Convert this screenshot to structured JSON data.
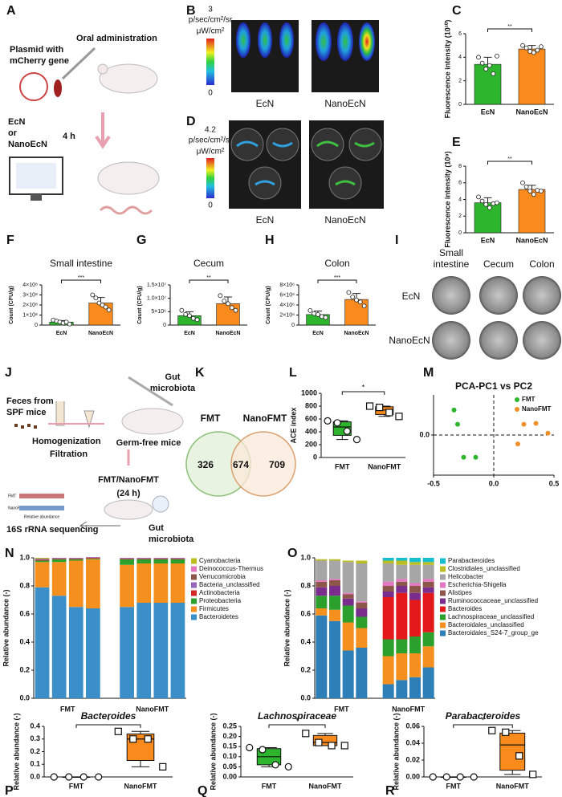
{
  "figure": {
    "A": {
      "letter": "A",
      "oral": "Oral administration",
      "plasmid": [
        "Plasmid with",
        "mCherry gene"
      ],
      "strain": [
        "EcN",
        "or",
        "NanoEcN"
      ],
      "time": "4 h"
    },
    "B": {
      "letter": "B",
      "scale_max": 3,
      "units": [
        "p/sec/cm²/sr",
        "μW/cm²"
      ],
      "scale_min": 0,
      "labels": [
        "EcN",
        "NanoEcN"
      ]
    },
    "D": {
      "letter": "D",
      "scale_max": 4.2,
      "units": [
        "p/sec/cm²/sr",
        "μW/cm²"
      ],
      "scale_min": 0,
      "labels": [
        "EcN",
        "NanoEcN"
      ]
    },
    "I": {
      "letter": "I",
      "columns": [
        [
          "Small",
          "intestine"
        ],
        [
          "Cecum"
        ],
        [
          "Colon"
        ]
      ],
      "rows": [
        "EcN",
        "NanoEcN"
      ]
    },
    "J": {
      "letter": "J",
      "feces": [
        "Feces from",
        "SPF mice"
      ],
      "steps": [
        "Homogenization",
        "Filtration",
        "FMT/NanoFMT",
        "(24 h)"
      ],
      "gut_top": [
        "Gut",
        "microbiota"
      ],
      "germ_free": "Germ-free mice",
      "gut_bottom": [
        "Gut",
        "microbiota"
      ],
      "sequencing": "16S rRNA sequencing",
      "mini_legend": [
        "FMT",
        "NanoFMT"
      ],
      "mini_axis": "Relative abundance"
    },
    "K": {
      "letter": "K",
      "sets": [
        "FMT",
        "NanoFMT"
      ],
      "counts": {
        "left": 326,
        "both": 674,
        "right": 709
      }
    }
  },
  "chart_data": [
    {
      "type": "bar",
      "panel": "C",
      "ylabel": "Fluorescence intensity (10¹⁰)",
      "categories": [
        "EcN",
        "NanoEcN"
      ],
      "values": [
        3.4,
        4.7
      ],
      "errors": [
        0.6,
        0.3
      ],
      "points": [
        [
          4.0,
          3.5,
          3.0,
          3.3,
          2.6,
          4.1
        ],
        [
          5.0,
          4.8,
          4.5,
          4.4,
          4.6,
          4.9
        ]
      ],
      "colors": [
        "#2db52d",
        "#f98a1b"
      ],
      "ylim": [
        0,
        6
      ],
      "yticks": [
        0,
        2,
        4,
        6
      ],
      "significance": "**"
    },
    {
      "type": "bar",
      "panel": "E",
      "ylabel": "Fluorescence intensity (10⁹)",
      "categories": [
        "EcN",
        "NanoEcN"
      ],
      "values": [
        3.6,
        5.2
      ],
      "errors": [
        0.6,
        0.5
      ],
      "points": [
        [
          4.3,
          3.8,
          3.4,
          3.0,
          3.5,
          3.6
        ],
        [
          6.0,
          5.5,
          5.0,
          4.6,
          5.1,
          5.0
        ]
      ],
      "colors": [
        "#2db52d",
        "#f98a1b"
      ],
      "ylim": [
        0,
        8
      ],
      "yticks": [
        0,
        2,
        4,
        6,
        8
      ],
      "significance": "**"
    },
    {
      "type": "bar",
      "panel": "F",
      "title": "Small intestine",
      "ylabel": "Count (CFU/g)",
      "categories": [
        "EcN",
        "NanoEcN"
      ],
      "values": [
        30000000,
        220000000
      ],
      "errors": [
        15000000,
        55000000
      ],
      "points": [
        [
          50000000,
          40000000,
          30000000,
          20000000,
          30000000,
          10000000
        ],
        [
          300000000,
          270000000,
          220000000,
          200000000,
          180000000,
          150000000
        ]
      ],
      "colors": [
        "#2db52d",
        "#f98a1b"
      ],
      "ylim": [
        0,
        400000000
      ],
      "yticks": [
        0,
        {
          "value": 100000000,
          "label": "1×10⁸"
        },
        {
          "value": 200000000,
          "label": "2×10⁸"
        },
        {
          "value": 300000000,
          "label": "3×10⁸"
        },
        {
          "value": 400000000,
          "label": "4×10⁸"
        }
      ],
      "significance": "***"
    },
    {
      "type": "bar",
      "panel": "G",
      "title": "Cecum",
      "ylabel": "Count (CFU/g)",
      "categories": [
        "EcN",
        "NanoEcN"
      ],
      "values": [
        3500000,
        8000000
      ],
      "errors": [
        1500000,
        2500000
      ],
      "points": [
        [
          5500000,
          4000000,
          3500000,
          2500000,
          2000000
        ],
        [
          11000000,
          9000000,
          8000000,
          6500000,
          5500000
        ]
      ],
      "colors": [
        "#2db52d",
        "#f98a1b"
      ],
      "ylim": [
        0,
        15000000
      ],
      "yticks": [
        0,
        {
          "value": 5000000,
          "label": "5×10⁶"
        },
        {
          "value": 10000000,
          "label": "1.0×10⁷"
        },
        {
          "value": 15000000,
          "label": "1.5×10⁷"
        }
      ],
      "significance": "**"
    },
    {
      "type": "bar",
      "panel": "H",
      "title": "Colon",
      "ylabel": "Count (CFU/g)",
      "categories": [
        "EcN",
        "NanoEcN"
      ],
      "values": [
        2100000,
        5100000
      ],
      "errors": [
        700000,
        1200000
      ],
      "points": [
        [
          2900000,
          2300000,
          2100000,
          1700000,
          1500000
        ],
        [
          6500000,
          5600000,
          5000000,
          4600000,
          3800000
        ]
      ],
      "colors": [
        "#2db52d",
        "#f98a1b"
      ],
      "ylim": [
        0,
        8000000
      ],
      "yticks": [
        0,
        {
          "value": 2000000,
          "label": "2×10⁶"
        },
        {
          "value": 4000000,
          "label": "4×10⁶"
        },
        {
          "value": 6000000,
          "label": "6×10⁶"
        },
        {
          "value": 8000000,
          "label": "8×10⁶"
        }
      ],
      "significance": "***"
    },
    {
      "type": "box",
      "panel": "L",
      "ylabel": "ACE index",
      "categories": [
        "FMT",
        "NanoFMT"
      ],
      "boxes": [
        {
          "min": 280,
          "q1": 345,
          "median": 475,
          "q3": 555,
          "max": 570
        },
        {
          "min": 640,
          "q1": 670,
          "median": 740,
          "q3": 790,
          "max": 800
        }
      ],
      "points": [
        [
          570,
          540,
          410,
          280
        ],
        [
          800,
          780,
          700,
          640
        ]
      ],
      "markers": [
        "circle",
        "square"
      ],
      "colors": [
        "#2db52d",
        "#f98a1b"
      ],
      "ylim": [
        0,
        1000
      ],
      "yticks": [
        0,
        200,
        400,
        600,
        800,
        1000
      ],
      "significance": "*"
    },
    {
      "type": "scatter",
      "panel": "M",
      "title": "PCA-PC1 vs PC2",
      "xlim": [
        -0.5,
        0.5
      ],
      "ylim": [
        -0.45,
        0.45
      ],
      "xticks": [
        -0.5,
        {
          "value": 0,
          "label": "0.0"
        },
        0.5
      ],
      "yticks": [
        {
          "value": 0,
          "label": "0.0"
        }
      ],
      "series": [
        {
          "name": "FMT",
          "color": "#2db52d",
          "x": [
            -0.33,
            -0.3,
            -0.25,
            -0.15
          ],
          "y": [
            0.28,
            0.12,
            -0.25,
            -0.25
          ]
        },
        {
          "name": "NanoFMT",
          "color": "#f0902a",
          "x": [
            0.25,
            0.35,
            0.45,
            0.2
          ],
          "y": [
            0.12,
            0.13,
            0.02,
            -0.1
          ]
        }
      ]
    },
    {
      "type": "stacked",
      "panel": "N",
      "ylabel": "Relative abundance (-)",
      "categories": [
        null,
        null,
        null,
        null,
        null,
        null,
        null,
        null
      ],
      "groups": [
        "FMT",
        "NanoFMT"
      ],
      "ylim": [
        0,
        1
      ],
      "yticks": [
        {
          "value": 0,
          "label": "0.0"
        },
        0.2,
        0.4,
        0.6,
        0.8,
        {
          "value": 1,
          "label": "1.0"
        }
      ],
      "series": [
        {
          "name": "Bacteroidetes",
          "color": "#3a8fc9",
          "values": [
            0.79,
            0.73,
            0.65,
            0.64,
            0.65,
            0.68,
            0.68,
            0.68
          ]
        },
        {
          "name": "Firmicutes",
          "color": "#f5901e",
          "values": [
            0.18,
            0.24,
            0.33,
            0.35,
            0.3,
            0.28,
            0.28,
            0.28
          ]
        },
        {
          "name": "Proteobacteria",
          "color": "#2ca02c",
          "values": [
            0.01,
            0.02,
            0.01,
            0.005,
            0.04,
            0.03,
            0.03,
            0.03
          ]
        },
        {
          "name": "Actinobacteria",
          "color": "#d62728",
          "values": [
            0.005,
            0.005,
            0.005,
            0.005,
            0.005,
            0.005,
            0.005,
            0.005
          ]
        },
        {
          "name": "Bacteria_unclassified",
          "color": "#9467bd",
          "values": [
            0.005,
            0.005,
            0.005,
            0.005,
            0.005,
            0.005,
            0.005,
            0.005
          ]
        },
        {
          "name": "Verrucomicrobia",
          "color": "#8c564b",
          "values": [
            0.005,
            0,
            0,
            0,
            0,
            0,
            0,
            0
          ]
        },
        {
          "name": "Deinococcus-Thermus",
          "color": "#e377c2",
          "values": [
            0,
            0,
            0,
            0,
            0,
            0,
            0,
            0
          ]
        },
        {
          "name": "Cyanobacteria",
          "color": "#bcbd22",
          "values": [
            0.005,
            0,
            0,
            0,
            0,
            0,
            0,
            0
          ]
        }
      ]
    },
    {
      "type": "stacked",
      "panel": "O",
      "ylabel": "Relative abundance (-)",
      "categories": [
        null,
        null,
        null,
        null,
        null,
        null,
        null,
        null
      ],
      "groups": [
        "FMT",
        "NanoFMT"
      ],
      "ylim": [
        0,
        1
      ],
      "yticks": [
        {
          "value": 0,
          "label": "0.0"
        },
        0.2,
        0.4,
        0.6,
        0.8,
        {
          "value": 1,
          "label": "1.0"
        }
      ],
      "series": [
        {
          "name": "Bacteroidales_S24-7_group_ge",
          "color": "#2e7fb8",
          "values": [
            0.59,
            0.55,
            0.34,
            0.36,
            0.1,
            0.13,
            0.15,
            0.22
          ]
        },
        {
          "name": "Bacteroidales_unclassified",
          "color": "#f5901e",
          "values": [
            0.05,
            0.08,
            0.2,
            0.14,
            0.2,
            0.19,
            0.17,
            0.15
          ]
        },
        {
          "name": "Lachnospiraceae_unclassified",
          "color": "#2ca02c",
          "values": [
            0.09,
            0.1,
            0.12,
            0.08,
            0.12,
            0.1,
            0.12,
            0.1
          ]
        },
        {
          "name": "Bacteroides",
          "color": "#e3191c",
          "values": [
            0,
            0,
            0,
            0,
            0.3,
            0.33,
            0.26,
            0.28
          ]
        },
        {
          "name": "Ruminococcaceae_unclassified",
          "color": "#7b2d8e",
          "values": [
            0.06,
            0.07,
            0.05,
            0.06,
            0.04,
            0.05,
            0.05,
            0.04
          ]
        },
        {
          "name": "Alistipes",
          "color": "#8c564b",
          "values": [
            0.04,
            0.04,
            0.03,
            0.04,
            0.04,
            0.03,
            0.05,
            0.04
          ]
        },
        {
          "name": "Escherichia-Shigella",
          "color": "#e377c2",
          "values": [
            0.01,
            0.01,
            0.01,
            0.01,
            0.03,
            0.02,
            0.02,
            0.02
          ]
        },
        {
          "name": "Helicobacter",
          "color": "#a6a6a6",
          "values": [
            0.14,
            0.13,
            0.22,
            0.27,
            0.13,
            0.1,
            0.13,
            0.1
          ]
        },
        {
          "name": "Clostridiales_unclassified",
          "color": "#bcbd22",
          "values": [
            0.01,
            0.01,
            0.01,
            0.02,
            0.02,
            0.03,
            0.02,
            0.02
          ]
        },
        {
          "name": "Parabacteroides",
          "color": "#17becf",
          "values": [
            0,
            0,
            0,
            0,
            0.02,
            0.02,
            0.03,
            0.03
          ]
        }
      ]
    },
    {
      "type": "box",
      "panel": "P",
      "title": "Bacteroides",
      "ylabel": "Relative abundance (-)",
      "categories": [
        "FMT",
        "NanoFMT"
      ],
      "boxes": [
        {
          "min": 0,
          "q1": 0,
          "median": 0,
          "q3": 0,
          "max": 0
        },
        {
          "min": 0.08,
          "q1": 0.13,
          "median": 0.3,
          "q3": 0.34,
          "max": 0.36
        }
      ],
      "points": [
        [
          0,
          0,
          0,
          0
        ],
        [
          0.36,
          0.3,
          0.3,
          0.08
        ]
      ],
      "markers": [
        "circle",
        "square"
      ],
      "colors": [
        "#2db52d",
        "#f98a1b"
      ],
      "ylim": [
        0,
        0.4
      ],
      "yticks": [
        {
          "value": 0,
          "label": "0.0"
        },
        0.1,
        0.2,
        0.3,
        0.4
      ],
      "significance": "*"
    },
    {
      "type": "box",
      "panel": "Q",
      "title": "Lachnospiraceae",
      "ylabel": "Relative abundance (-)",
      "categories": [
        "FMT",
        "NanoFMT"
      ],
      "boxes": [
        {
          "min": 0.05,
          "q1": 0.06,
          "median": 0.1,
          "q3": 0.14,
          "max": 0.145
        },
        {
          "min": 0.155,
          "q1": 0.155,
          "median": 0.17,
          "q3": 0.205,
          "max": 0.215
        }
      ],
      "points": [
        [
          0.145,
          0.135,
          0.06,
          0.05
        ],
        [
          0.215,
          0.17,
          0.155,
          0.155
        ]
      ],
      "markers": [
        "circle",
        "square"
      ],
      "colors": [
        "#2db52d",
        "#f98a1b"
      ],
      "ylim": [
        0,
        0.25
      ],
      "yticks": [
        {
          "value": 0,
          "label": "0.00"
        },
        0.05,
        {
          "value": 0.1,
          "label": "0.10"
        },
        0.15,
        {
          "value": 0.2,
          "label": "0.20"
        },
        0.25
      ],
      "significance": "*"
    },
    {
      "type": "box",
      "panel": "R",
      "title": "Parabacteroides",
      "ylabel": "Relative abundance (-)",
      "categories": [
        "FMT",
        "NanoFMT"
      ],
      "boxes": [
        {
          "min": 0,
          "q1": 0,
          "median": 0,
          "q3": 0,
          "max": 0
        },
        {
          "min": 0.003,
          "q1": 0.008,
          "median": 0.038,
          "q3": 0.052,
          "max": 0.055
        }
      ],
      "points": [
        [
          0,
          0,
          0,
          0
        ],
        [
          0.055,
          0.053,
          0.025,
          0.003
        ]
      ],
      "markers": [
        "circle",
        "square"
      ],
      "colors": [
        "#2db52d",
        "#f98a1b"
      ],
      "ylim": [
        0,
        0.06
      ],
      "yticks": [
        {
          "value": 0,
          "label": "0.00"
        },
        0.02,
        0.04,
        0.06
      ],
      "significance": "*"
    }
  ]
}
